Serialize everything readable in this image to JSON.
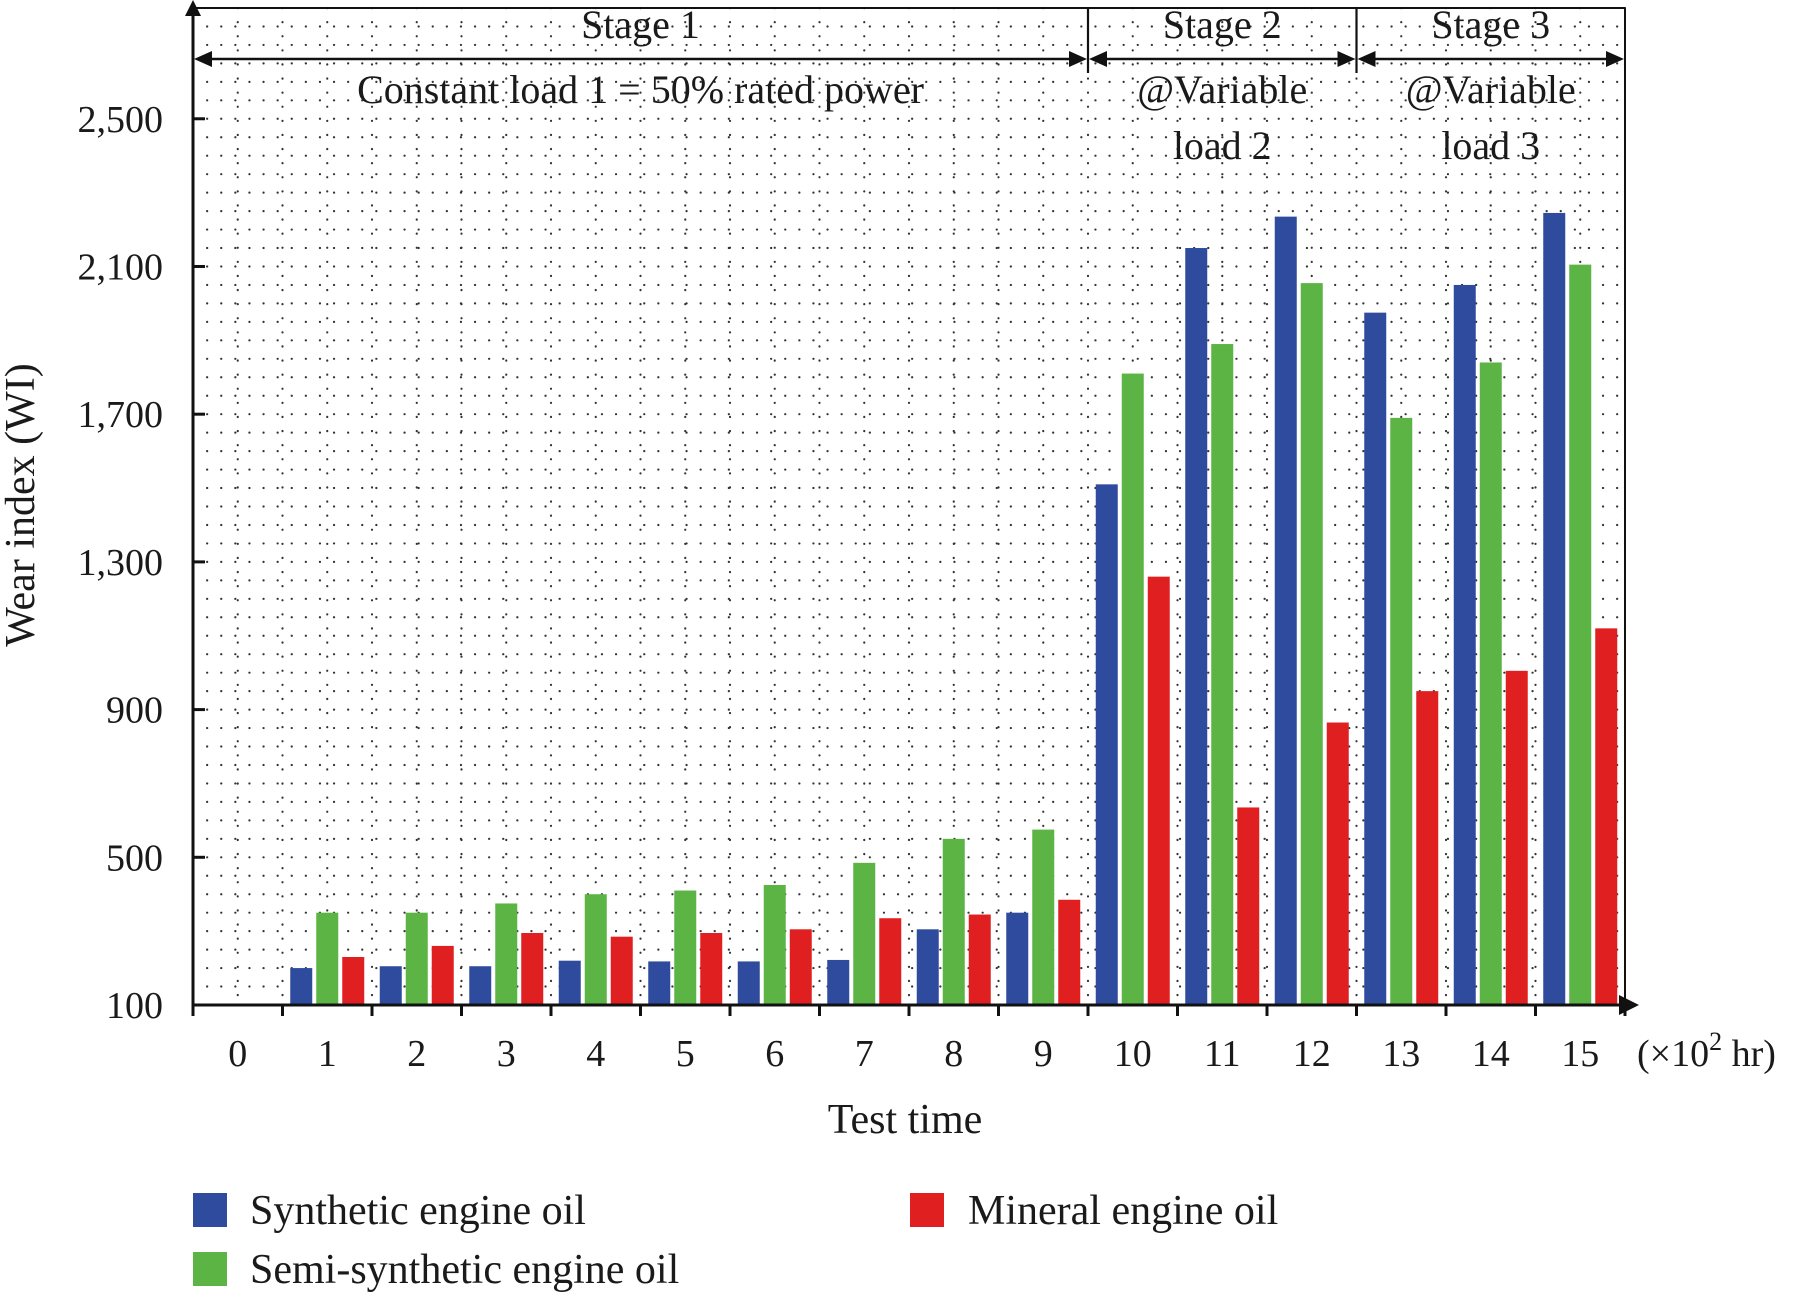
{
  "chart_data": {
    "type": "bar",
    "xlabel": "Test time",
    "x_unit": "(×10",
    "x_unit_sup": "2",
    "x_unit_tail": " hr)",
    "ylabel": "Wear index (WI)",
    "ylim": [
      100,
      2800
    ],
    "y_ticks": [
      100,
      500,
      900,
      1300,
      1700,
      2100,
      2500
    ],
    "y_tick_labels": [
      "100",
      "500",
      "900",
      "1,300",
      "1,700",
      "2,100",
      "2,500"
    ],
    "categories": [
      "0",
      "1",
      "2",
      "3",
      "4",
      "5",
      "6",
      "7",
      "8",
      "9",
      "10",
      "11",
      "12",
      "13",
      "14",
      "15"
    ],
    "grid": true,
    "legend_position": "bottom",
    "series": [
      {
        "name": "Synthetic engine oil",
        "color": "#2e4b9e",
        "values": [
          null,
          200,
          205,
          205,
          220,
          218,
          218,
          222,
          305,
          350,
          1510,
          2150,
          2235,
          1975,
          2050,
          2245
        ]
      },
      {
        "name": "Semi-synthetic engine oil",
        "color": "#5cb445",
        "values": [
          null,
          350,
          350,
          375,
          400,
          410,
          425,
          485,
          550,
          575,
          1810,
          1890,
          2055,
          1690,
          1840,
          2105
        ]
      },
      {
        "name": "Mineral engine oil",
        "color": "#e02020",
        "values": [
          null,
          230,
          260,
          295,
          285,
          295,
          305,
          335,
          345,
          385,
          1260,
          635,
          865,
          950,
          1005,
          1120
        ]
      }
    ],
    "stages": [
      {
        "label": "Stage 1",
        "sublabel_1": "Constant load 1 = 50% rated power",
        "sublabel_2": "",
        "from": 0,
        "to": 10
      },
      {
        "label": "Stage 2",
        "sublabel_1": "@Variable",
        "sublabel_2": "load 2",
        "from": 10,
        "to": 13
      },
      {
        "label": "Stage 3",
        "sublabel_1": "@Variable",
        "sublabel_2": "load 3",
        "from": 13,
        "to": 16
      }
    ]
  }
}
